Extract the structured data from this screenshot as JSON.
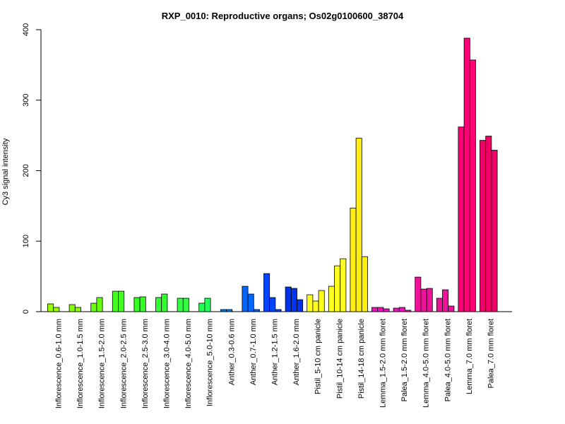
{
  "chart_data": {
    "type": "bar",
    "title": "RXP_0010: Reproductive organs; Os02g0100600_38704",
    "xlabel": "",
    "ylabel": "Cy3 signal intensity",
    "ylim": [
      0,
      400
    ],
    "yticks": [
      0,
      100,
      200,
      300,
      400
    ],
    "grid": false,
    "legend": "none",
    "groups": [
      {
        "label": "Inflorescence_0.6-1.0 mm",
        "color": "#99ff00",
        "values": [
          11,
          6
        ]
      },
      {
        "label": "Inflorescence_1.0-1.5 mm",
        "color": "#88ff00",
        "values": [
          10,
          6
        ]
      },
      {
        "label": "Inflorescence_1.5-2.0 mm",
        "color": "#66ff11",
        "values": [
          12,
          20
        ]
      },
      {
        "label": "Inflorescence_2.0-2.5 mm",
        "color": "#44ff22",
        "values": [
          29,
          29
        ]
      },
      {
        "label": "Inflorescence_2.5-3.0 mm",
        "color": "#33ff22",
        "values": [
          20,
          21
        ]
      },
      {
        "label": "Inflorescence_3.0-4.0 mm",
        "color": "#33ff33",
        "values": [
          20,
          25
        ]
      },
      {
        "label": "Inflorescence_4.0-5.0 mm",
        "color": "#33ff44",
        "values": [
          19,
          19
        ]
      },
      {
        "label": "Inflorescence_5.0-10 mm",
        "color": "#22ff55",
        "values": [
          12,
          19
        ]
      },
      {
        "label": "Anther_0.3-0.6 mm",
        "color": "#0077ee",
        "values": [
          3,
          3
        ]
      },
      {
        "label": "Anther_0.7-1.0 mm",
        "color": "#0066ff",
        "values": [
          36,
          25,
          3
        ]
      },
      {
        "label": "Anther_1.2-1.5 mm",
        "color": "#0044ff",
        "values": [
          54,
          20,
          3
        ]
      },
      {
        "label": "Anther_1.6-2.0 mm",
        "color": "#0033ee",
        "values": [
          35,
          33,
          17
        ]
      },
      {
        "label": "Pistil_5-10 cm panicle",
        "color": "#ffff22",
        "values": [
          24,
          15,
          30
        ]
      },
      {
        "label": "Pistil_10-14 cm panicle",
        "color": "#ffff22",
        "values": [
          36,
          65,
          75
        ]
      },
      {
        "label": "Pistil_14-18 cm panicle",
        "color": "#ffee11",
        "values": [
          147,
          246,
          78
        ]
      },
      {
        "label": "Lemma_1.5-2.0 mm floret",
        "color": "#ee11bb",
        "values": [
          6,
          6,
          4
        ]
      },
      {
        "label": "Palea_1.5-2.0 mm floret",
        "color": "#ee11bb",
        "values": [
          5,
          6,
          2
        ]
      },
      {
        "label": "Lemma_4.0-5.0 mm floret",
        "color": "#ee1199",
        "values": [
          49,
          32,
          33
        ]
      },
      {
        "label": "Palea_4.0-5.0 mm floret",
        "color": "#ee1199",
        "values": [
          19,
          31,
          8
        ]
      },
      {
        "label": "Lemma_7.0 mm floret",
        "color": "#ff0077",
        "values": [
          262,
          388,
          357
        ]
      },
      {
        "label": "Palea_7.0 mm floret",
        "color": "#ee0066",
        "values": [
          243,
          249,
          229
        ]
      }
    ]
  }
}
